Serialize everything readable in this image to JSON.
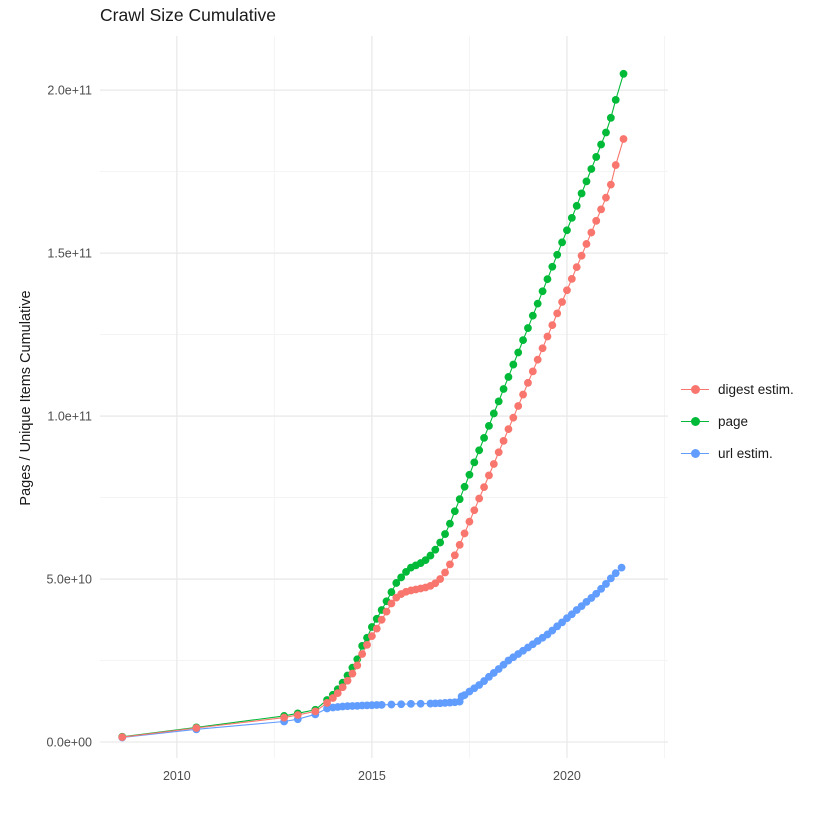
{
  "chart_data": {
    "type": "scatter",
    "title": "Crawl Size Cumulative",
    "xlabel": "",
    "ylabel": "Pages / Unique Items Cumulative",
    "grid": true,
    "legend_position": "right",
    "x_axis": {
      "domain": [
        2008.03,
        2022.59
      ],
      "ticks": [
        2010,
        2015,
        2020
      ],
      "tick_labels": [
        "2010",
        "2015",
        "2020"
      ],
      "minor_ticks": [
        2012.5,
        2017.5,
        2022.5
      ]
    },
    "y_axis": {
      "domain": [
        -4900000000.0,
        216600000000.0
      ],
      "ticks": [
        0,
        50000000000.0,
        100000000000.0,
        150000000000.0,
        200000000000.0
      ],
      "tick_labels": [
        "0.0e+00",
        "5.0e+10",
        "1.0e+11",
        "1.5e+11",
        "2.0e+11"
      ],
      "minor_ticks": [
        25000000000.0,
        75000000000.0,
        125000000000.0,
        175000000000.0
      ]
    },
    "style": {
      "major_grid_color": "#E9E9E9",
      "minor_grid_color": "#F3F3F3",
      "tick_label_color": "#4D4D4D",
      "title_color": "#1a1a1a",
      "background": "#FFFFFF"
    },
    "series": [
      {
        "name": "digest estim.",
        "color": "#F8766D",
        "z": 3,
        "points": [
          [
            2008.6,
            1500000000.0
          ],
          [
            2010.5,
            4300000000.0
          ],
          [
            2012.75,
            7500000000.0
          ],
          [
            2013.1,
            8300000000.0
          ],
          [
            2013.55,
            9400000000.0
          ],
          [
            2013.85,
            12000000000.0
          ],
          [
            2014.0,
            13500000000.0
          ],
          [
            2014.125,
            15000000000.0
          ],
          [
            2014.25,
            16800000000.0
          ],
          [
            2014.375,
            18800000000.0
          ],
          [
            2014.5,
            21000000000.0
          ],
          [
            2014.625,
            23500000000.0
          ],
          [
            2014.75,
            27000000000.0
          ],
          [
            2014.875,
            29800000000.0
          ],
          [
            2015.0,
            32500000000.0
          ],
          [
            2015.125,
            34800000000.0
          ],
          [
            2015.25,
            37500000000.0
          ],
          [
            2015.375,
            40000000000.0
          ],
          [
            2015.5,
            42500000000.0
          ],
          [
            2015.625,
            44300000000.0
          ],
          [
            2015.75,
            45400000000.0
          ],
          [
            2015.875,
            46100000000.0
          ],
          [
            2016.0,
            46500000000.0
          ],
          [
            2016.125,
            46800000000.0
          ],
          [
            2016.25,
            47100000000.0
          ],
          [
            2016.375,
            47400000000.0
          ],
          [
            2016.5,
            47900000000.0
          ],
          [
            2016.625,
            48700000000.0
          ],
          [
            2016.75,
            50000000000.0
          ],
          [
            2016.875,
            52000000000.0
          ],
          [
            2017.0,
            54500000000.0
          ],
          [
            2017.125,
            57300000000.0
          ],
          [
            2017.25,
            60500000000.0
          ],
          [
            2017.375,
            64000000000.0
          ],
          [
            2017.5,
            67600000000.0
          ],
          [
            2017.625,
            71100000000.0
          ],
          [
            2017.75,
            74700000000.0
          ],
          [
            2017.875,
            78200000000.0
          ],
          [
            2018.0,
            81800000000.0
          ],
          [
            2018.125,
            85300000000.0
          ],
          [
            2018.25,
            88900000000.0
          ],
          [
            2018.375,
            92400000000.0
          ],
          [
            2018.5,
            96000000000.0
          ],
          [
            2018.625,
            99500000000.0
          ],
          [
            2018.75,
            103100000000.0
          ],
          [
            2018.875,
            106600000000.0
          ],
          [
            2019.0,
            110200000000.0
          ],
          [
            2019.125,
            113700000000.0
          ],
          [
            2019.25,
            117300000000.0
          ],
          [
            2019.375,
            120800000000.0
          ],
          [
            2019.5,
            124400000000.0
          ],
          [
            2019.625,
            127900000000.0
          ],
          [
            2019.75,
            131500000000.0
          ],
          [
            2019.875,
            135000000000.0
          ],
          [
            2020.0,
            138600000000.0
          ],
          [
            2020.125,
            142100000000.0
          ],
          [
            2020.25,
            145700000000.0
          ],
          [
            2020.375,
            149200000000.0
          ],
          [
            2020.5,
            152800000000.0
          ],
          [
            2020.625,
            156300000000.0
          ],
          [
            2020.75,
            159900000000.0
          ],
          [
            2020.875,
            163400000000.0
          ],
          [
            2021.0,
            167000000000.0
          ],
          [
            2021.125,
            171000000000.0
          ],
          [
            2021.25,
            177000000000.0
          ],
          [
            2021.45,
            185000000000.0
          ]
        ]
      },
      {
        "name": "page",
        "color": "#00BA38",
        "z": 1,
        "points": [
          [
            2008.6,
            1600000000.0
          ],
          [
            2010.5,
            4500000000.0
          ],
          [
            2012.75,
            8000000000.0
          ],
          [
            2013.1,
            8800000000.0
          ],
          [
            2013.55,
            9900000000.0
          ],
          [
            2013.85,
            12900000000.0
          ],
          [
            2014.0,
            14500000000.0
          ],
          [
            2014.125,
            16200000000.0
          ],
          [
            2014.25,
            18200000000.0
          ],
          [
            2014.375,
            20400000000.0
          ],
          [
            2014.5,
            22800000000.0
          ],
          [
            2014.625,
            25400000000.0
          ],
          [
            2014.75,
            29500000000.0
          ],
          [
            2014.875,
            32000000000.0
          ],
          [
            2015.0,
            35300000000.0
          ],
          [
            2015.125,
            37800000000.0
          ],
          [
            2015.25,
            40500000000.0
          ],
          [
            2015.375,
            43200000000.0
          ],
          [
            2015.5,
            46000000000.0
          ],
          [
            2015.625,
            48800000000.0
          ],
          [
            2015.75,
            50500000000.0
          ],
          [
            2015.875,
            52200000000.0
          ],
          [
            2016.0,
            53500000000.0
          ],
          [
            2016.125,
            54200000000.0
          ],
          [
            2016.25,
            54900000000.0
          ],
          [
            2016.375,
            55800000000.0
          ],
          [
            2016.5,
            57200000000.0
          ],
          [
            2016.625,
            59000000000.0
          ],
          [
            2016.75,
            61200000000.0
          ],
          [
            2016.875,
            63800000000.0
          ],
          [
            2017.0,
            67000000000.0
          ],
          [
            2017.125,
            70800000000.0
          ],
          [
            2017.25,
            74500000000.0
          ],
          [
            2017.375,
            78300000000.0
          ],
          [
            2017.5,
            82000000000.0
          ],
          [
            2017.625,
            85800000000.0
          ],
          [
            2017.75,
            89500000000.0
          ],
          [
            2017.875,
            93300000000.0
          ],
          [
            2018.0,
            97000000000.0
          ],
          [
            2018.125,
            100800000000.0
          ],
          [
            2018.25,
            104500000000.0
          ],
          [
            2018.375,
            108300000000.0
          ],
          [
            2018.5,
            112000000000.0
          ],
          [
            2018.625,
            115800000000.0
          ],
          [
            2018.75,
            119500000000.0
          ],
          [
            2018.875,
            123300000000.0
          ],
          [
            2019.0,
            127000000000.0
          ],
          [
            2019.125,
            130800000000.0
          ],
          [
            2019.25,
            134500000000.0
          ],
          [
            2019.375,
            138300000000.0
          ],
          [
            2019.5,
            142000000000.0
          ],
          [
            2019.625,
            145800000000.0
          ],
          [
            2019.75,
            149500000000.0
          ],
          [
            2019.875,
            153300000000.0
          ],
          [
            2020.0,
            157000000000.0
          ],
          [
            2020.125,
            160800000000.0
          ],
          [
            2020.25,
            164500000000.0
          ],
          [
            2020.375,
            168300000000.0
          ],
          [
            2020.5,
            172000000000.0
          ],
          [
            2020.625,
            175800000000.0
          ],
          [
            2020.75,
            179500000000.0
          ],
          [
            2020.875,
            183300000000.0
          ],
          [
            2021.0,
            187000000000.0
          ],
          [
            2021.125,
            191500000000.0
          ],
          [
            2021.25,
            197000000000.0
          ],
          [
            2021.45,
            205000000000.0
          ]
        ]
      },
      {
        "name": "url estim.",
        "color": "#619CFF",
        "z": 2,
        "points": [
          [
            2008.6,
            1400000000.0
          ],
          [
            2010.5,
            3900000000.0
          ],
          [
            2012.75,
            6300000000.0
          ],
          [
            2013.1,
            7000000000.0
          ],
          [
            2013.55,
            8500000000.0
          ],
          [
            2013.85,
            10300000000.0
          ],
          [
            2014.0,
            10600000000.0
          ],
          [
            2014.125,
            10750000000.0
          ],
          [
            2014.25,
            10900000000.0
          ],
          [
            2014.375,
            11000000000.0
          ],
          [
            2014.5,
            11050000000.0
          ],
          [
            2014.625,
            11100000000.0
          ],
          [
            2014.75,
            11200000000.0
          ],
          [
            2014.875,
            11250000000.0
          ],
          [
            2015.0,
            11300000000.0
          ],
          [
            2015.125,
            11350000000.0
          ],
          [
            2015.25,
            11400000000.0
          ],
          [
            2015.5,
            11500000000.0
          ],
          [
            2015.75,
            11600000000.0
          ],
          [
            2016.0,
            11700000000.0
          ],
          [
            2016.25,
            11750000000.0
          ],
          [
            2016.5,
            11800000000.0
          ],
          [
            2016.625,
            11850000000.0
          ],
          [
            2016.75,
            11900000000.0
          ],
          [
            2016.875,
            12000000000.0
          ],
          [
            2017.0,
            12100000000.0
          ],
          [
            2017.125,
            12200000000.0
          ],
          [
            2017.25,
            12400000000.0
          ],
          [
            2017.3,
            14000000000.0
          ],
          [
            2017.375,
            14400000000.0
          ],
          [
            2017.5,
            15500000000.0
          ],
          [
            2017.625,
            16500000000.0
          ],
          [
            2017.75,
            17500000000.0
          ],
          [
            2017.875,
            18700000000.0
          ],
          [
            2018.0,
            20000000000.0
          ],
          [
            2018.125,
            21200000000.0
          ],
          [
            2018.25,
            22400000000.0
          ],
          [
            2018.375,
            23700000000.0
          ],
          [
            2018.5,
            25000000000.0
          ],
          [
            2018.625,
            26000000000.0
          ],
          [
            2018.75,
            27000000000.0
          ],
          [
            2018.875,
            28000000000.0
          ],
          [
            2019.0,
            29000000000.0
          ],
          [
            2019.125,
            30000000000.0
          ],
          [
            2019.25,
            31000000000.0
          ],
          [
            2019.375,
            32000000000.0
          ],
          [
            2019.5,
            33000000000.0
          ],
          [
            2019.625,
            34200000000.0
          ],
          [
            2019.75,
            35500000000.0
          ],
          [
            2019.875,
            36700000000.0
          ],
          [
            2020.0,
            38000000000.0
          ],
          [
            2020.125,
            39200000000.0
          ],
          [
            2020.25,
            40500000000.0
          ],
          [
            2020.375,
            41700000000.0
          ],
          [
            2020.5,
            43000000000.0
          ],
          [
            2020.625,
            44200000000.0
          ],
          [
            2020.75,
            45500000000.0
          ],
          [
            2020.875,
            47000000000.0
          ],
          [
            2021.0,
            48500000000.0
          ],
          [
            2021.125,
            50200000000.0
          ],
          [
            2021.25,
            51800000000.0
          ],
          [
            2021.4,
            53500000000.0
          ]
        ]
      }
    ]
  }
}
